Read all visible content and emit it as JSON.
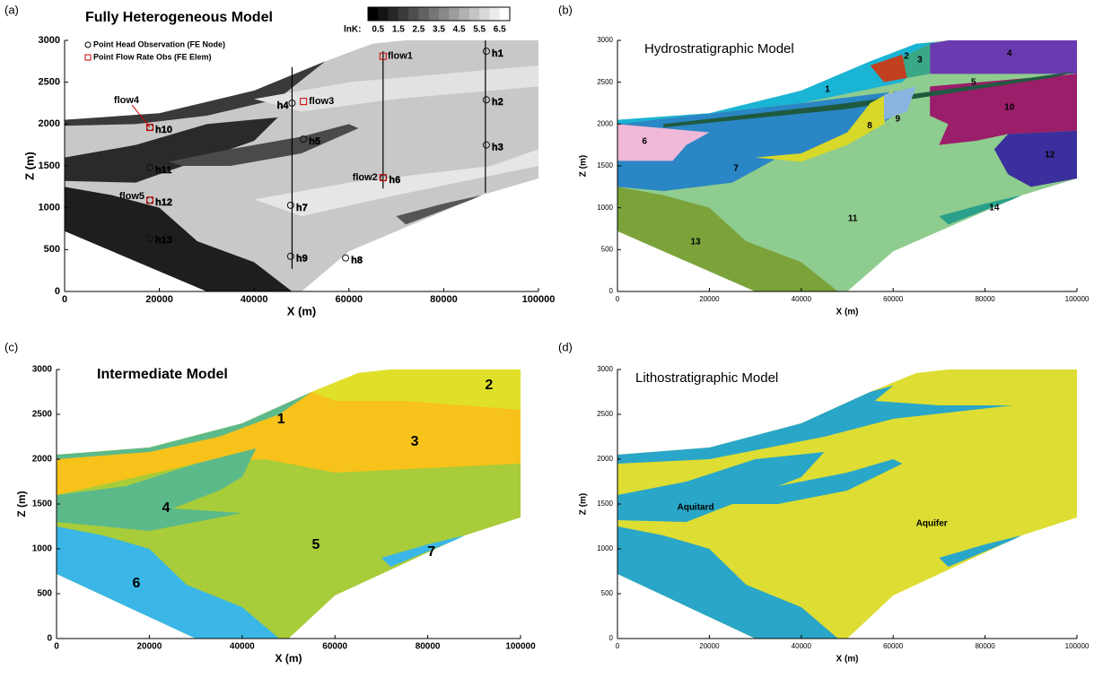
{
  "chart_data": [
    {
      "type": "section",
      "panel": "(a)",
      "title": "Fully Heterogeneous Model",
      "xlabel": "X (m)",
      "ylabel": "Z (m)",
      "xlim": [
        0,
        100000
      ],
      "ylim": [
        0,
        3000
      ],
      "xticks": [
        0,
        20000,
        40000,
        60000,
        80000,
        100000
      ],
      "yticks": [
        0,
        500,
        1000,
        1500,
        2000,
        2500,
        3000
      ],
      "legend": [
        "Point Head Observation (FE Node)",
        "Point Flow Rate Obs (FE Elem)"
      ],
      "colorbar": {
        "label": "lnK:",
        "clim": [
          0,
          7
        ],
        "ticks": [
          0.5,
          1.5,
          2.5,
          3.5,
          4.5,
          5.5,
          6.5
        ]
      },
      "heads": {
        "names": [
          "h1",
          "h2",
          "h3",
          "h4",
          "h5",
          "h6",
          "h7",
          "h8",
          "h9",
          "h10",
          "h11",
          "h12",
          "h13"
        ],
        "x": [
          89000,
          89000,
          89000,
          48000,
          50400,
          67300,
          47700,
          59300,
          47700,
          18000,
          18000,
          18000,
          18000
        ],
        "y": [
          2870,
          2290,
          1750,
          2250,
          1820,
          1360,
          1030,
          400,
          420,
          1960,
          1480,
          1090,
          640
        ]
      },
      "flows": {
        "names": [
          "flow1",
          "flow2",
          "flow3",
          "flow4",
          "flow5"
        ],
        "x": [
          67200,
          67200,
          50400,
          18000,
          18000
        ],
        "y": [
          2810,
          1360,
          2270,
          1960,
          1090
        ]
      }
    },
    {
      "type": "section",
      "panel": "(b)",
      "title": "Hydrostratigraphic Model",
      "xlabel": "X (m)",
      "ylabel": "Z (m)",
      "xlim": [
        0,
        100000
      ],
      "ylim": [
        0,
        3000
      ],
      "xticks": [
        0,
        20000,
        40000,
        60000,
        80000,
        100000
      ],
      "yticks": [
        0,
        500,
        1000,
        1500,
        2000,
        2500,
        3000
      ],
      "zones": [
        "1",
        "2",
        "3",
        "4",
        "5",
        "6",
        "7",
        "8",
        "9",
        "10",
        "11",
        "12",
        "13",
        "14"
      ]
    },
    {
      "type": "section",
      "panel": "(c)",
      "title": "Intermediate Model",
      "xlabel": "X (m)",
      "ylabel": "Z (m)",
      "xlim": [
        0,
        100000
      ],
      "ylim": [
        0,
        3000
      ],
      "xticks": [
        0,
        20000,
        40000,
        60000,
        80000,
        100000
      ],
      "yticks": [
        0,
        500,
        1000,
        1500,
        2000,
        2500,
        3000
      ],
      "zones": [
        "1",
        "2",
        "3",
        "4",
        "5",
        "6",
        "7"
      ]
    },
    {
      "type": "section",
      "panel": "(d)",
      "title": "Lithostratigraphic Model",
      "xlabel": "X (m)",
      "ylabel": "Z (m)",
      "xlim": [
        0,
        100000
      ],
      "ylim": [
        0,
        3000
      ],
      "xticks": [
        0,
        20000,
        40000,
        60000,
        80000,
        100000
      ],
      "yticks": [
        0,
        500,
        1000,
        1500,
        2000,
        2500,
        3000
      ],
      "zones": [
        "Aquitard",
        "Aquifer"
      ]
    }
  ]
}
